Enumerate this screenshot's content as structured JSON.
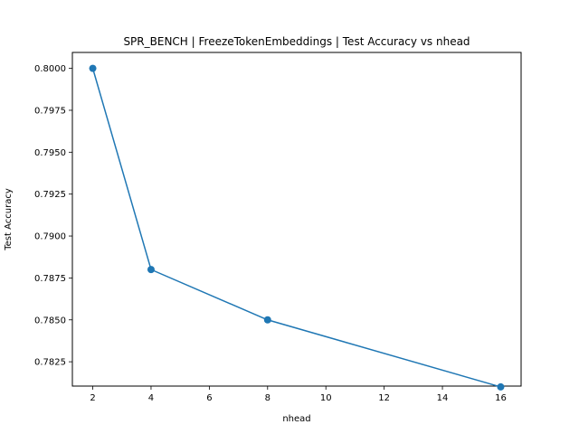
{
  "chart_data": {
    "type": "line",
    "title": "SPR_BENCH | FreezeTokenEmbeddings | Test Accuracy vs nhead",
    "xlabel": "nhead",
    "ylabel": "Test Accuracy",
    "x": [
      2,
      4,
      8,
      16
    ],
    "series": [
      {
        "values": [
          0.8,
          0.788,
          0.785,
          0.781
        ],
        "color": "#1f77b4"
      }
    ],
    "xlim": [
      1.3,
      16.7
    ],
    "ylim": [
      0.78105,
      0.80095
    ],
    "xticks": [
      2,
      4,
      6,
      8,
      10,
      12,
      14,
      16
    ],
    "xtick_labels": [
      "2",
      "4",
      "6",
      "8",
      "10",
      "12",
      "14",
      "16"
    ],
    "yticks": [
      0.7825,
      0.785,
      0.7875,
      0.79,
      0.7925,
      0.795,
      0.7975,
      0.8
    ],
    "ytick_labels": [
      "0.7825",
      "0.7850",
      "0.7875",
      "0.7900",
      "0.7925",
      "0.7950",
      "0.7975",
      "0.8000"
    ],
    "grid": false,
    "legend": "none",
    "markers": "circle"
  }
}
